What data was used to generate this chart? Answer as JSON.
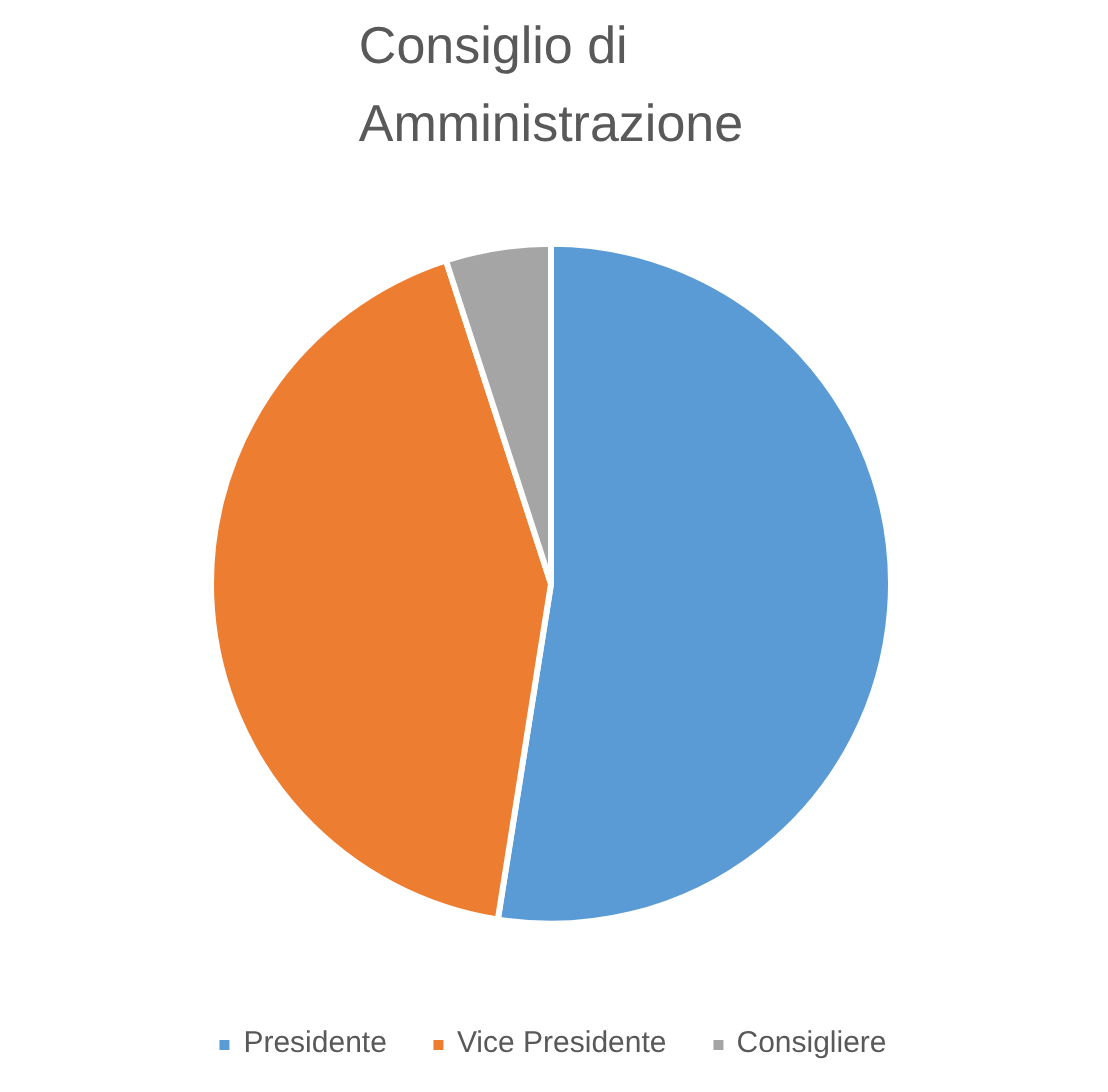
{
  "chart_data": {
    "type": "pie",
    "title": "Consiglio di Amministrazione",
    "categories": [
      "Presidente",
      "Vice Presidente",
      "Consigliere"
    ],
    "values": [
      52.5,
      42.5,
      5
    ],
    "colors": [
      "#5b9bd5",
      "#ed7d31",
      "#a5a5a5"
    ],
    "legend": "bottom"
  }
}
